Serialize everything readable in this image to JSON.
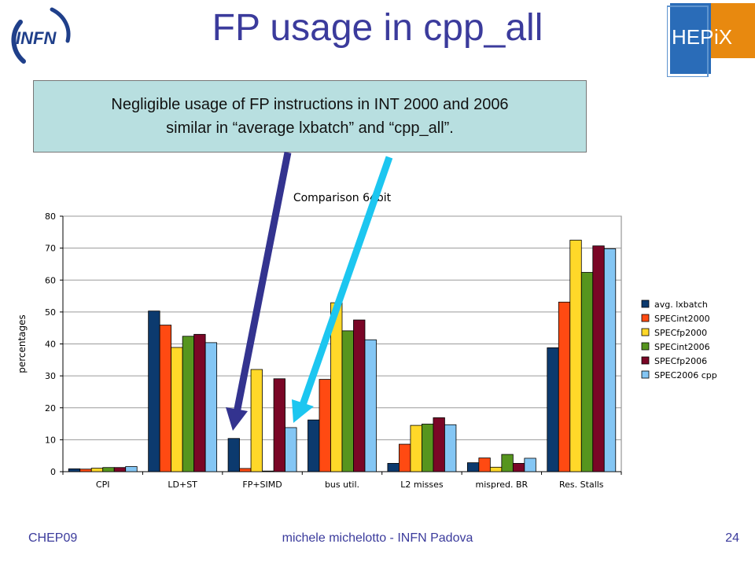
{
  "slide": {
    "title": "FP usage in cpp_all",
    "callout_line1": "Negligible usage of FP instructions in INT 2000 and 2006",
    "callout_line2": "similar in “average lxbatch” and “cpp_all”.",
    "logo_left_text": "INFN",
    "logo_right_text_a": "HEP",
    "logo_right_text_b": "iX",
    "footer_left": "CHEP09",
    "footer_center": "michele michelotto - INFN Padova",
    "footer_right": "24"
  },
  "colors": {
    "title": "#3b3b9c",
    "callout_bg": "#b8dfe0",
    "arrow_dark": "#33338f",
    "arrow_light": "#1cc6f0",
    "hepix_blue": "#2a6cb8",
    "hepix_orange": "#e8890f"
  },
  "chart_data": {
    "type": "bar",
    "title": "Comparison 64bit",
    "xlabel": "",
    "ylabel": "percentages",
    "ylim": [
      0,
      80
    ],
    "yticks": [
      0,
      10,
      20,
      30,
      40,
      50,
      60,
      70,
      80
    ],
    "grid": true,
    "legend_position": "right",
    "categories": [
      "CPI",
      "LD+ST",
      "FP+SIMD",
      "bus util.",
      "L2 misses",
      "mispred. BR",
      "Res. Stalls"
    ],
    "series": [
      {
        "name": "avg. lxbatch",
        "color": "#0c3a6e",
        "values": [
          0.9,
          50.3,
          10.4,
          16.2,
          2.6,
          2.8,
          38.8
        ]
      },
      {
        "name": "SPECint2000",
        "color": "#ff4a12",
        "values": [
          0.8,
          45.9,
          1.0,
          28.9,
          8.6,
          4.3,
          53.1
        ]
      },
      {
        "name": "SPECfp2000",
        "color": "#ffd829",
        "values": [
          1.1,
          38.9,
          32.0,
          52.9,
          14.5,
          1.4,
          72.5
        ]
      },
      {
        "name": "SPECint2006",
        "color": "#56951e",
        "values": [
          1.3,
          42.4,
          0.2,
          44.1,
          14.9,
          5.4,
          62.4
        ]
      },
      {
        "name": "SPECfp2006",
        "color": "#7a0626",
        "values": [
          1.3,
          43.0,
          29.1,
          47.5,
          16.9,
          2.6,
          70.7
        ]
      },
      {
        "name": "SPEC2006 cpp",
        "color": "#84c6f4",
        "values": [
          1.6,
          40.4,
          13.8,
          41.3,
          14.7,
          4.2,
          69.8
        ]
      }
    ]
  }
}
